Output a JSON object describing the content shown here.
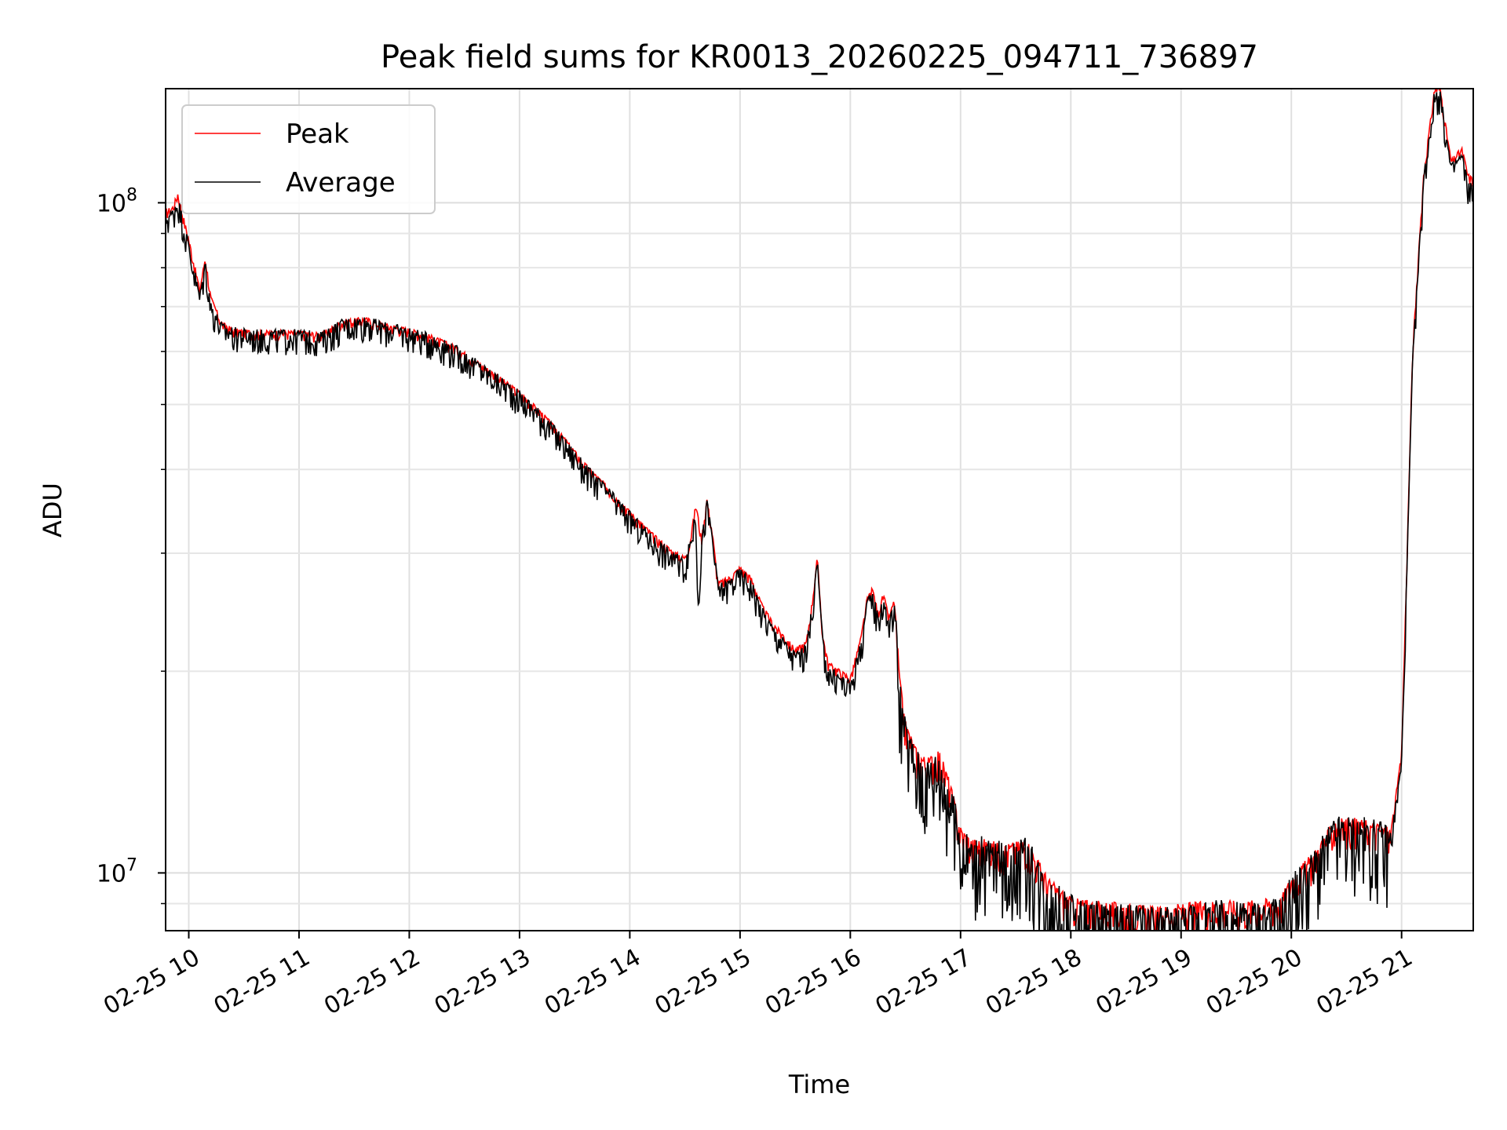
{
  "chart_data": {
    "type": "line",
    "title": "Peak field sums for KR0013_20260225_094711_736897",
    "xlabel": "Time",
    "ylabel": "ADU",
    "y_scale": "log",
    "ylim": [
      8200000,
      148000000
    ],
    "xlim": [
      9.79,
      21.65
    ],
    "x_unit": "hour of day (2026-02-25)",
    "x_ticks": [
      {
        "value": 10,
        "label": "02-25 10"
      },
      {
        "value": 11,
        "label": "02-25 11"
      },
      {
        "value": 12,
        "label": "02-25 12"
      },
      {
        "value": 13,
        "label": "02-25 13"
      },
      {
        "value": 14,
        "label": "02-25 14"
      },
      {
        "value": 15,
        "label": "02-25 15"
      },
      {
        "value": 16,
        "label": "02-25 16"
      },
      {
        "value": 17,
        "label": "02-25 17"
      },
      {
        "value": 18,
        "label": "02-25 18"
      },
      {
        "value": 19,
        "label": "02-25 19"
      },
      {
        "value": 20,
        "label": "02-25 20"
      },
      {
        "value": 21,
        "label": "02-25 21"
      }
    ],
    "y_major_ticks": [
      {
        "value": 10000000,
        "base": "10",
        "exp": "7"
      },
      {
        "value": 100000000,
        "base": "10",
        "exp": "8"
      }
    ],
    "y_minor_ticks": [
      9000000,
      20000000,
      30000000,
      40000000,
      50000000,
      60000000,
      70000000,
      80000000,
      90000000
    ],
    "grid": true,
    "legend": {
      "position": "top-left",
      "entries": [
        "Peak",
        "Average"
      ]
    },
    "series": [
      {
        "name": "Peak",
        "color": "#ff0000",
        "x": [
          9.79,
          9.85,
          9.9,
          10.0,
          10.1,
          10.15,
          10.2,
          10.3,
          10.4,
          10.6,
          10.8,
          11.0,
          11.2,
          11.4,
          11.6,
          11.8,
          12.0,
          12.2,
          12.4,
          12.6,
          12.8,
          13.0,
          13.2,
          13.4,
          13.6,
          13.8,
          14.0,
          14.2,
          14.4,
          14.5,
          14.55,
          14.6,
          14.65,
          14.7,
          14.75,
          14.8,
          14.9,
          15.0,
          15.1,
          15.2,
          15.3,
          15.4,
          15.5,
          15.6,
          15.65,
          15.7,
          15.75,
          15.8,
          15.9,
          16.0,
          16.1,
          16.15,
          16.2,
          16.25,
          16.3,
          16.35,
          16.4,
          16.45,
          16.5,
          16.6,
          16.7,
          16.8,
          16.9,
          17.0,
          17.1,
          17.2,
          17.4,
          17.6,
          17.8,
          18.0,
          18.2,
          18.5,
          18.8,
          19.0,
          19.3,
          19.6,
          19.9,
          20.0,
          20.2,
          20.4,
          20.6,
          20.8,
          20.9,
          21.0,
          21.05,
          21.1,
          21.2,
          21.3,
          21.35,
          21.4,
          21.45,
          21.5,
          21.55,
          21.6,
          21.65
        ],
        "values": [
          97000000,
          98000000,
          103000000,
          88000000,
          74000000,
          83000000,
          72000000,
          66000000,
          64500000,
          64000000,
          64000000,
          64000000,
          63500000,
          66500000,
          67000000,
          65500000,
          64500000,
          63000000,
          61000000,
          58000000,
          55000000,
          52000000,
          48500000,
          44500000,
          40500000,
          37500000,
          34500000,
          32000000,
          30000000,
          29500000,
          31500000,
          35500000,
          31500000,
          36000000,
          32000000,
          27000000,
          27500000,
          28500000,
          27500000,
          25000000,
          23500000,
          22500000,
          21500000,
          22000000,
          25000000,
          29500000,
          22500000,
          20500000,
          20000000,
          19500000,
          22500000,
          25500000,
          26500000,
          24500000,
          26000000,
          24000000,
          25500000,
          19000000,
          16500000,
          15000000,
          14500000,
          15000000,
          13500000,
          11500000,
          11000000,
          11000000,
          10800000,
          11000000,
          9600000,
          9000000,
          8900000,
          8800000,
          8700000,
          8800000,
          8900000,
          8900000,
          9000000,
          9700000,
          10500000,
          11800000,
          11800000,
          11600000,
          11400000,
          15000000,
          30000000,
          60000000,
          110000000,
          148000000,
          148000000,
          130000000,
          115000000,
          118000000,
          120000000,
          110000000,
          108000000
        ],
        "noise": 0.02
      },
      {
        "name": "Average",
        "color": "#000000",
        "x": [
          9.79,
          9.85,
          9.9,
          10.0,
          10.1,
          10.15,
          10.2,
          10.3,
          10.4,
          10.6,
          10.8,
          11.0,
          11.2,
          11.4,
          11.6,
          11.8,
          12.0,
          12.2,
          12.4,
          12.6,
          12.8,
          13.0,
          13.2,
          13.4,
          13.6,
          13.8,
          14.0,
          14.2,
          14.4,
          14.5,
          14.55,
          14.6,
          14.62,
          14.65,
          14.7,
          14.75,
          14.8,
          14.9,
          15.0,
          15.1,
          15.2,
          15.3,
          15.4,
          15.5,
          15.6,
          15.65,
          15.7,
          15.75,
          15.78,
          15.8,
          15.9,
          16.0,
          16.1,
          16.15,
          16.2,
          16.25,
          16.3,
          16.35,
          16.4,
          16.45,
          16.5,
          16.6,
          16.7,
          16.8,
          16.9,
          17.0,
          17.1,
          17.2,
          17.4,
          17.6,
          17.8,
          18.0,
          18.2,
          18.5,
          18.8,
          19.0,
          19.3,
          19.6,
          19.9,
          20.0,
          20.2,
          20.4,
          20.6,
          20.8,
          20.9,
          21.0,
          21.05,
          21.1,
          21.2,
          21.3,
          21.35,
          21.4,
          21.45,
          21.5,
          21.55,
          21.6,
          21.65
        ],
        "values": [
          95000000,
          96000000,
          101000000,
          86000000,
          72000000,
          81000000,
          70000000,
          65000000,
          64000000,
          63500000,
          63500000,
          63500000,
          63000000,
          66000000,
          66500000,
          65000000,
          64000000,
          62500000,
          60500000,
          57500000,
          54500000,
          51500000,
          48000000,
          44000000,
          40000000,
          37000000,
          34000000,
          31500000,
          29500000,
          29000000,
          31000000,
          35000000,
          24500000,
          31000000,
          35500000,
          31500000,
          26500000,
          27000000,
          28000000,
          27000000,
          24500000,
          23000000,
          22000000,
          21000000,
          21500000,
          24500000,
          29000000,
          22000000,
          20800000,
          20000000,
          19500000,
          19000000,
          22000000,
          25000000,
          26000000,
          24000000,
          25500000,
          23500000,
          25000000,
          18500000,
          16000000,
          14500000,
          14000000,
          14500000,
          13000000,
          11200000,
          10700000,
          10700000,
          10500000,
          10700000,
          9300000,
          8800000,
          8600000,
          8500000,
          8400000,
          8500000,
          8600000,
          8600000,
          8700000,
          9400000,
          10200000,
          11500000,
          11500000,
          11300000,
          11100000,
          14500000,
          29000000,
          58000000,
          108000000,
          145000000,
          145000000,
          127000000,
          112000000,
          115000000,
          117000000,
          106000000,
          105000000
        ],
        "noise": 0.05
      }
    ]
  }
}
